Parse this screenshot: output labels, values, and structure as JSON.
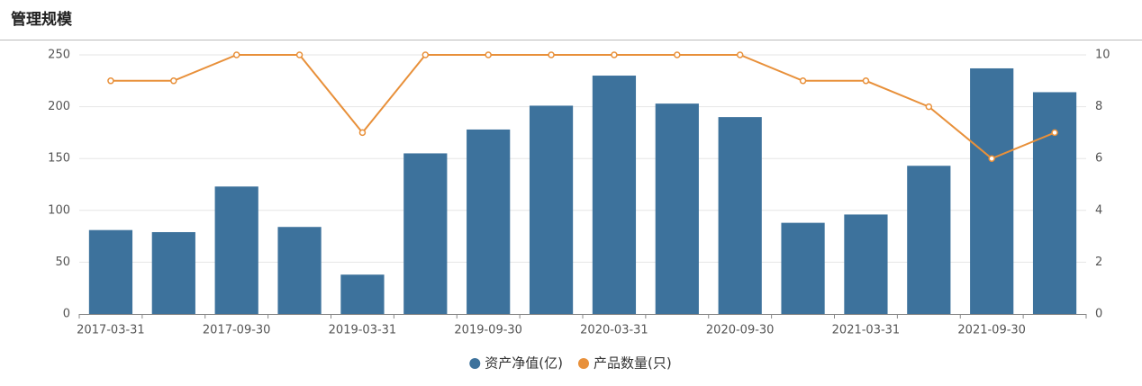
{
  "chart_data": {
    "type": "bar",
    "title": "管理规模",
    "categories": [
      "2017-03-31",
      null,
      "2017-09-30",
      null,
      "2019-03-31",
      null,
      "2019-09-30",
      null,
      "2020-03-31",
      null,
      "2020-09-30",
      null,
      "2021-03-31",
      null,
      "2021-09-30",
      null
    ],
    "series": [
      {
        "name": "资产净值(亿)",
        "type": "bar",
        "color": "#3d729c",
        "values": [
          81,
          79,
          123,
          84,
          38,
          155,
          178,
          201,
          230,
          203,
          190,
          88,
          96,
          143,
          237,
          214
        ]
      },
      {
        "name": "产品数量(只)",
        "type": "line",
        "axis": "y2",
        "color": "#e8903a",
        "values": [
          9,
          9,
          10,
          10,
          7,
          10,
          10,
          10,
          10,
          10,
          10,
          9,
          9,
          8,
          6,
          7
        ]
      }
    ],
    "ylim": [
      0,
      250
    ],
    "yticks": [
      0,
      50,
      100,
      150,
      200,
      250
    ],
    "y2lim": [
      0,
      10
    ],
    "y2ticks": [
      0,
      2,
      4,
      6,
      8,
      10
    ],
    "grid": true,
    "legend": "bottom"
  }
}
